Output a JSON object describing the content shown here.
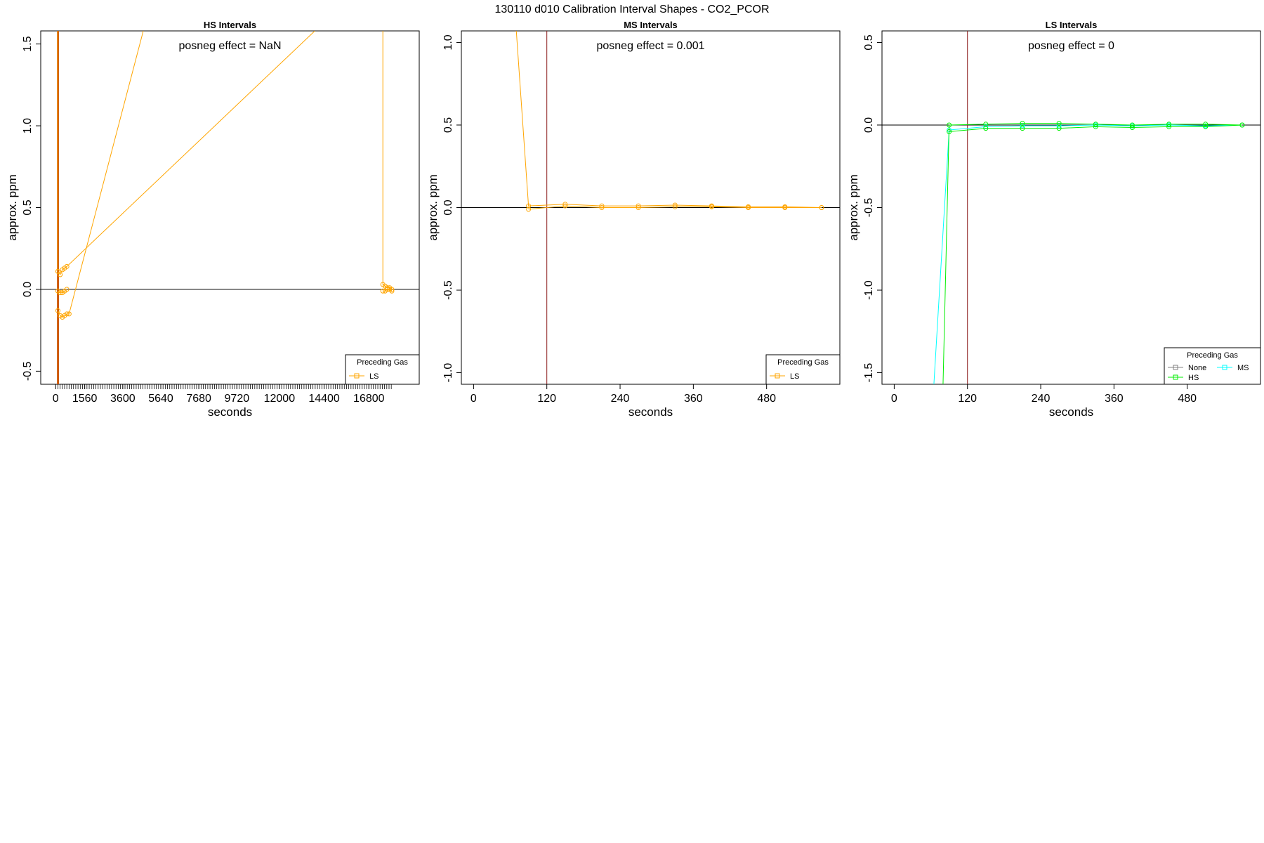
{
  "figure": {
    "title": "130110  d010   Calibration Interval Shapes - CO2_PCOR"
  },
  "colors": {
    "LS": "#FFA500",
    "None": "#808080",
    "HS": "#00EE00",
    "MS": "#00FFFF",
    "vline": "#8B1A1A",
    "zeroline": "#000000",
    "HS_steep": "#CC5500"
  },
  "chart_data": [
    {
      "type": "line",
      "title": "HS Intervals",
      "xlabel": "seconds",
      "ylabel": "approx. ppm",
      "annotation": "posneg effect = NaN",
      "xlim": [
        -800,
        19500
      ],
      "ylim": [
        -0.58,
        1.58
      ],
      "xticks": [
        0,
        1560,
        3600,
        5640,
        7680,
        9720,
        12000,
        14400,
        16800
      ],
      "xtick_labels": [
        "0",
        "1560",
        "3600",
        "5640",
        "7680",
        "9720",
        "12000",
        "14400",
        "16800"
      ],
      "minor_ticks": {
        "from": 120,
        "to": 18000,
        "step": 120
      },
      "yticks": [
        -0.5,
        0.0,
        0.5,
        1.0,
        1.5
      ],
      "ytick_labels": [
        "-0.5",
        "0.0",
        "0.5",
        "1.0",
        "1.5"
      ],
      "hline": 0,
      "vline": 120,
      "grid": false,
      "legend": {
        "title": "Preceding Gas",
        "position": "bottom-right",
        "entries": [
          "LS"
        ]
      },
      "series": [
        {
          "name": "LS",
          "color_key": "LS",
          "x": [
            120,
            120
          ],
          "y": [
            1.58,
            0.11
          ]
        },
        {
          "name": "LS",
          "color_key": "LS",
          "x": [
            120,
            240,
            360,
            480,
            600,
            13900
          ],
          "y": [
            0.11,
            0.09,
            0.12,
            0.13,
            0.14,
            1.58
          ]
        },
        {
          "name": "LS",
          "color_key": "LS",
          "x": [
            120,
            240,
            360,
            480,
            600
          ],
          "y": [
            -0.01,
            -0.02,
            -0.02,
            -0.01,
            0.0
          ]
        },
        {
          "name": "LS",
          "color_key": "LS",
          "x": [
            120,
            240,
            360,
            480,
            600,
            720,
            4700
          ],
          "y": [
            -0.13,
            -0.16,
            -0.17,
            -0.16,
            -0.15,
            -0.15,
            1.58
          ]
        },
        {
          "name": "LS",
          "color_key": "LS",
          "x": [
            17550,
            17550,
            17670,
            17790,
            17910,
            18030
          ],
          "y": [
            1.58,
            0.03,
            0.02,
            0.01,
            0.01,
            0.0
          ]
        },
        {
          "name": "LS",
          "color_key": "LS",
          "x": [
            17550,
            17670,
            17790,
            17910,
            18030
          ],
          "y": [
            -0.01,
            -0.01,
            0.0,
            0.0,
            -0.01
          ]
        }
      ],
      "steep_lines": [
        {
          "color_key": "HS_steep",
          "x": [
            100,
            100
          ],
          "y": [
            1.58,
            -0.58
          ]
        },
        {
          "color_key": "HS_steep",
          "x": [
            150,
            150
          ],
          "y": [
            1.58,
            -0.58
          ]
        }
      ]
    },
    {
      "type": "line",
      "title": "MS Intervals",
      "xlabel": "seconds",
      "ylabel": "approx. ppm",
      "annotation": "posneg effect = 0.001",
      "xlim": [
        -20,
        600
      ],
      "ylim": [
        -1.07,
        1.07
      ],
      "xticks": [
        0,
        120,
        240,
        360,
        480
      ],
      "xtick_labels": [
        "0",
        "120",
        "240",
        "360",
        "480"
      ],
      "yticks": [
        -1.0,
        -0.5,
        0.0,
        0.5,
        1.0
      ],
      "ytick_labels": [
        "-1.0",
        "-0.5",
        "0.0",
        "0.5",
        "1.0"
      ],
      "hline": 0,
      "vline": 120,
      "grid": false,
      "legend": {
        "title": "Preceding Gas",
        "position": "bottom-right",
        "entries": [
          "LS"
        ]
      },
      "series": [
        {
          "name": "LS",
          "color_key": "LS",
          "x": [
            70,
            90,
            150,
            210,
            270,
            330,
            390,
            450,
            510,
            570
          ],
          "y": [
            1.07,
            0.01,
            0.02,
            0.01,
            0.01,
            0.015,
            0.01,
            0.005,
            0.005,
            0.0
          ]
        },
        {
          "name": "LS",
          "color_key": "LS",
          "x": [
            90,
            150,
            210,
            270,
            330,
            390,
            450,
            510,
            570
          ],
          "y": [
            -0.01,
            0.01,
            0.0,
            0.0,
            0.005,
            0.005,
            0.0,
            0.0,
            0.0
          ]
        }
      ]
    },
    {
      "type": "line",
      "title": "LS Intervals",
      "xlabel": "seconds",
      "ylabel": "approx. ppm",
      "annotation": "posneg effect = 0",
      "xlim": [
        -20,
        600
      ],
      "ylim": [
        -1.57,
        0.57
      ],
      "xticks": [
        0,
        120,
        240,
        360,
        480
      ],
      "xtick_labels": [
        "0",
        "120",
        "240",
        "360",
        "480"
      ],
      "yticks": [
        -1.5,
        -1.0,
        -0.5,
        0.0,
        0.5
      ],
      "ytick_labels": [
        "-1.5",
        "-1.0",
        "-0.5",
        "0.0",
        "0.5"
      ],
      "hline": 0,
      "vline": 120,
      "grid": false,
      "legend": {
        "title": "Preceding Gas",
        "position": "bottom-right",
        "entries": [
          "None",
          "MS",
          "HS"
        ]
      },
      "series": [
        {
          "name": "MS",
          "color_key": "MS",
          "x": [
            65,
            90,
            150,
            210,
            270,
            330,
            390,
            450,
            510,
            570
          ],
          "y": [
            -1.57,
            -0.03,
            -0.01,
            -0.005,
            -0.005,
            0.0,
            -0.005,
            0.0,
            -0.005,
            0.0
          ]
        },
        {
          "name": "HS",
          "color_key": "HS",
          "x": [
            80,
            90,
            150,
            210,
            270,
            330,
            390,
            450,
            510,
            570
          ],
          "y": [
            -1.57,
            0.0,
            0.005,
            0.01,
            0.01,
            0.005,
            0.0,
            0.005,
            0.005,
            0.0
          ]
        },
        {
          "name": "HS",
          "color_key": "HS",
          "x": [
            90,
            150,
            210,
            270,
            330,
            390,
            450,
            510,
            570
          ],
          "y": [
            -0.04,
            -0.02,
            -0.02,
            -0.02,
            -0.01,
            -0.015,
            -0.01,
            -0.01,
            0.0
          ]
        }
      ]
    }
  ]
}
